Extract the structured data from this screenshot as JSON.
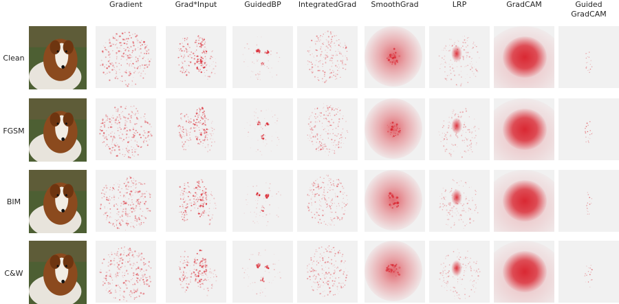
{
  "columns": [
    {
      "label": "Gradient"
    },
    {
      "label": "Grad*Input"
    },
    {
      "label": "GuidedBP"
    },
    {
      "label": "IntegratedGrad"
    },
    {
      "label": "SmoothGrad"
    },
    {
      "label": "LRP"
    },
    {
      "label": "GradCAM"
    },
    {
      "label": "Guided\nGradCAM"
    }
  ],
  "rows": [
    {
      "label": "Clean"
    },
    {
      "label": "FGSM"
    },
    {
      "label": "BIM"
    },
    {
      "label": "C&W"
    }
  ],
  "icons": {
    "photo": "collie-dog-photo",
    "map": "saliency-heatmap"
  },
  "colors": {
    "heat": "#d9202b",
    "map_bg": "#f1f1f1",
    "photo_bg": "#5a6b3a"
  }
}
